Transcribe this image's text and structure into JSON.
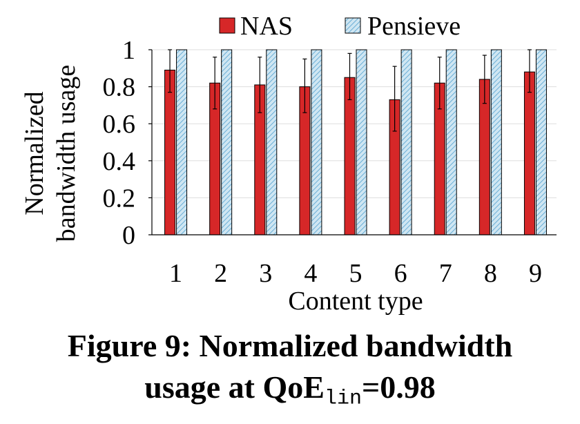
{
  "chart_data": {
    "type": "bar",
    "xlabel": "Content type",
    "ylabel_line1": "Normalized",
    "ylabel_line2": "bandwidth usage",
    "ylim": [
      0,
      1
    ],
    "yticks": [
      0,
      0.2,
      0.4,
      0.6,
      0.8,
      1
    ],
    "ytick_labels": [
      "0",
      "0.2",
      "0.4",
      "0.6",
      "0.8",
      "1"
    ],
    "categories": [
      "1",
      "2",
      "3",
      "4",
      "5",
      "6",
      "7",
      "8",
      "9"
    ],
    "grid": "horizontal",
    "legend_position": "top",
    "series": [
      {
        "name": "NAS",
        "color": "#d62728",
        "pattern": "solid",
        "values": [
          0.89,
          0.82,
          0.81,
          0.8,
          0.85,
          0.73,
          0.82,
          0.84,
          0.88
        ],
        "error_low": [
          0.77,
          0.68,
          0.66,
          0.66,
          0.73,
          0.56,
          0.68,
          0.71,
          0.77
        ],
        "error_high": [
          1.0,
          0.96,
          0.96,
          0.95,
          0.98,
          0.91,
          0.96,
          0.97,
          1.0
        ]
      },
      {
        "name": "Pensieve",
        "color": "#9ecae1",
        "pattern": "hatched",
        "values": [
          1,
          1,
          1,
          1,
          1,
          1,
          1,
          1,
          1
        ]
      }
    ]
  },
  "caption": {
    "line1": "Figure 9: Normalized bandwidth",
    "line2_prefix": "usage at QoE",
    "line2_sub": "lin",
    "line2_suffix": "=0.98"
  }
}
